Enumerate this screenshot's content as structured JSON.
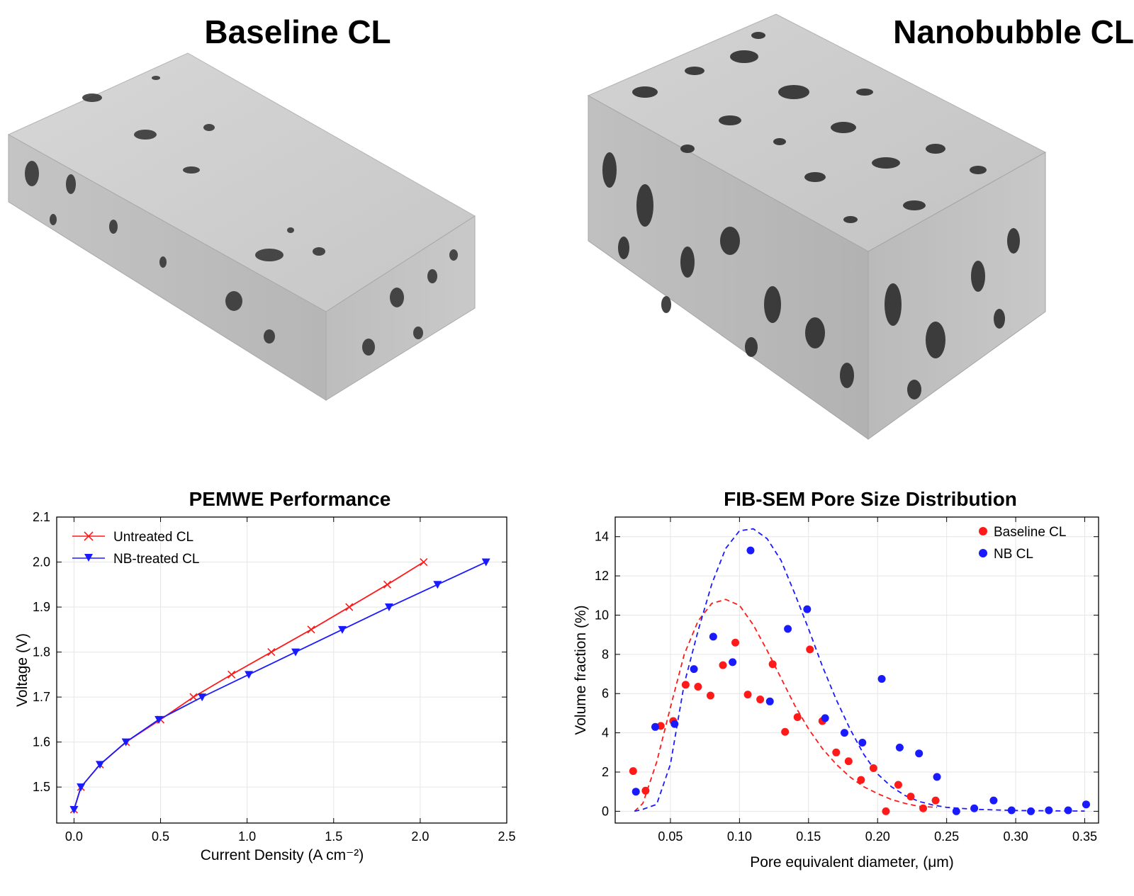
{
  "panels": {
    "top_left_title": "Baseline CL",
    "top_right_title": "Nanobubble CL"
  },
  "colors": {
    "red": "#ff1a1a",
    "blue": "#1a1aff",
    "grid": "#e6e6e6",
    "solid": "#c8c8c8"
  },
  "chart_data": [
    {
      "type": "line",
      "title": "PEMWE Performance",
      "xlabel": "Current Density (A cm⁻²)",
      "ylabel": "Voltage (V)",
      "xlim": [
        -0.1,
        2.5
      ],
      "ylim": [
        1.42,
        2.1
      ],
      "xticks": [
        "0.0",
        "0.5",
        "1.0",
        "1.5",
        "2.0",
        "2.5"
      ],
      "yticks": [
        "1.5",
        "1.6",
        "1.7",
        "1.8",
        "1.9",
        "2.0",
        "2.1"
      ],
      "grid": true,
      "legend": "top-left",
      "series": [
        {
          "name": "Untreated CL",
          "color": "#ff1a1a",
          "marker": "x",
          "x": [
            0.0,
            0.04,
            0.15,
            0.3,
            0.5,
            0.69,
            0.91,
            1.14,
            1.37,
            1.59,
            1.81,
            2.02
          ],
          "y": [
            1.45,
            1.5,
            1.55,
            1.6,
            1.65,
            1.7,
            1.75,
            1.8,
            1.85,
            1.9,
            1.95,
            2.0
          ]
        },
        {
          "name": "NB-treated CL",
          "color": "#1a1aff",
          "marker": "triangle-down",
          "x": [
            0.0,
            0.04,
            0.15,
            0.3,
            0.49,
            0.74,
            1.01,
            1.28,
            1.55,
            1.82,
            2.1,
            2.38
          ],
          "y": [
            1.45,
            1.5,
            1.55,
            1.6,
            1.65,
            1.7,
            1.75,
            1.8,
            1.85,
            1.9,
            1.95,
            2.0
          ]
        }
      ]
    },
    {
      "type": "scatter",
      "title": "FIB-SEM Pore Size Distribution",
      "xlabel": "Pore equivalent diameter, (μm)",
      "ylabel": "Volume fraction (%)",
      "xlim": [
        0.01,
        0.36
      ],
      "ylim": [
        -0.6,
        15.0
      ],
      "xticks": [
        "0.05",
        "0.10",
        "0.15",
        "0.20",
        "0.25",
        "0.30",
        "0.35"
      ],
      "yticks": [
        "0",
        "2",
        "4",
        "6",
        "8",
        "10",
        "12",
        "14"
      ],
      "grid": true,
      "legend": "top-right",
      "series": [
        {
          "name": "Baseline CL",
          "color": "#ff1a1a",
          "x": [
            0.023,
            0.032,
            0.043,
            0.052,
            0.061,
            0.07,
            0.079,
            0.088,
            0.097,
            0.106,
            0.115,
            0.124,
            0.133,
            0.142,
            0.151,
            0.16,
            0.17,
            0.179,
            0.188,
            0.197,
            0.206,
            0.215,
            0.224,
            0.233,
            0.242
          ],
          "y": [
            2.05,
            1.05,
            4.35,
            4.6,
            6.45,
            6.35,
            5.9,
            7.45,
            8.6,
            5.95,
            5.7,
            7.5,
            4.05,
            4.8,
            8.25,
            4.6,
            3.0,
            2.55,
            1.6,
            2.2,
            0.0,
            1.35,
            0.75,
            0.15,
            0.55
          ]
        },
        {
          "name": "NB CL",
          "color": "#1a1aff",
          "x": [
            0.025,
            0.039,
            0.053,
            0.067,
            0.081,
            0.095,
            0.108,
            0.122,
            0.135,
            0.149,
            0.162,
            0.176,
            0.189,
            0.203,
            0.216,
            0.23,
            0.243,
            0.257,
            0.27,
            0.284,
            0.297,
            0.311,
            0.324,
            0.338,
            0.351
          ],
          "y": [
            1.0,
            4.3,
            4.45,
            7.25,
            8.9,
            7.6,
            13.3,
            5.6,
            9.3,
            10.3,
            4.75,
            4.0,
            3.5,
            6.75,
            3.25,
            2.95,
            1.75,
            0.0,
            0.15,
            0.55,
            0.05,
            0.0,
            0.05,
            0.05,
            0.35
          ]
        }
      ],
      "fit_curves": [
        {
          "color": "#ff1a1a",
          "x": [
            0.024,
            0.03,
            0.04,
            0.05,
            0.06,
            0.07,
            0.08,
            0.09,
            0.1,
            0.11,
            0.12,
            0.13,
            0.14,
            0.15,
            0.16,
            0.17,
            0.18,
            0.19,
            0.2,
            0.21,
            0.22,
            0.23,
            0.243
          ],
          "y": [
            0.0,
            0.4,
            2.5,
            5.3,
            8.0,
            9.7,
            10.6,
            10.8,
            10.5,
            9.5,
            8.2,
            6.8,
            5.4,
            4.2,
            3.2,
            2.4,
            1.75,
            1.25,
            0.9,
            0.6,
            0.4,
            0.25,
            0.2
          ]
        },
        {
          "color": "#1a1aff",
          "x": [
            0.024,
            0.03,
            0.04,
            0.05,
            0.06,
            0.07,
            0.08,
            0.09,
            0.1,
            0.11,
            0.12,
            0.13,
            0.14,
            0.15,
            0.16,
            0.17,
            0.18,
            0.19,
            0.2,
            0.21,
            0.22,
            0.23,
            0.24,
            0.25,
            0.27,
            0.3,
            0.33,
            0.35
          ],
          "y": [
            0.0,
            0.1,
            0.35,
            2.4,
            6.5,
            9.2,
            11.6,
            13.4,
            14.3,
            14.4,
            13.9,
            12.8,
            11.1,
            9.3,
            7.4,
            5.7,
            4.2,
            2.9,
            1.9,
            1.25,
            0.8,
            0.5,
            0.32,
            0.2,
            0.1,
            0.04,
            0.02,
            0.01
          ]
        }
      ]
    }
  ]
}
